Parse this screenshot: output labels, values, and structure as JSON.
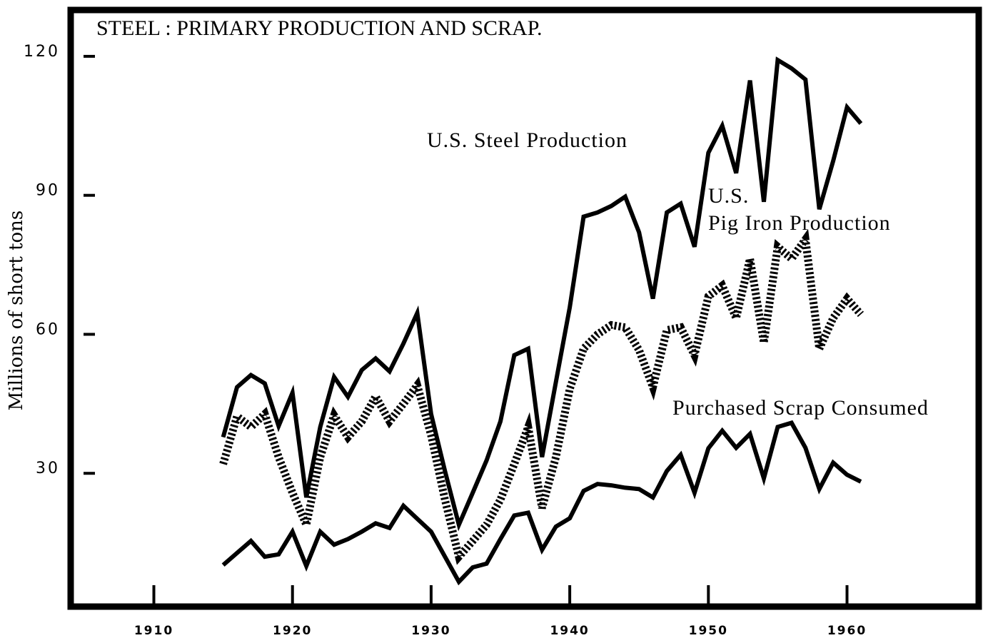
{
  "chart_data": {
    "type": "line",
    "title": "STEEL : PRIMARY PRODUCTION AND SCRAP.",
    "y_label": "Millions of short tons",
    "x": [
      1915,
      1916,
      1917,
      1918,
      1919,
      1920,
      1921,
      1922,
      1923,
      1924,
      1925,
      1926,
      1927,
      1928,
      1929,
      1930,
      1931,
      1932,
      1933,
      1934,
      1935,
      1936,
      1937,
      1938,
      1939,
      1940,
      1941,
      1942,
      1943,
      1944,
      1945,
      1946,
      1947,
      1948,
      1949,
      1950,
      1951,
      1952,
      1953,
      1954,
      1955,
      1956,
      1957,
      1958,
      1959,
      1960,
      1961
    ],
    "series": [
      {
        "name": "U.S. Steel Production",
        "color": "#000000",
        "style": "solid",
        "values": [
          37.8,
          48.6,
          51.2,
          49.4,
          40.2,
          47.4,
          24.8,
          40,
          50.8,
          46.5,
          52.3,
          54.8,
          52,
          58,
          64.6,
          42.8,
          30.5,
          18.9,
          25.8,
          32.8,
          41.2,
          55.5,
          56.9,
          33.5,
          49.7,
          65.8,
          85.4,
          86.3,
          87.7,
          89.7,
          82,
          67.7,
          86.3,
          88.2,
          78.9,
          99.2,
          105,
          94.8,
          114.8,
          88.6,
          119.2,
          117.4,
          115,
          87,
          97.4,
          109,
          105.5
        ]
      },
      {
        "name": "U.S.\nPig Iron Production",
        "color": "#000000",
        "style": "dashed",
        "values": [
          32,
          42.3,
          40,
          42.8,
          33.5,
          25.8,
          18.9,
          33.5,
          42.5,
          37.8,
          41.2,
          46.6,
          41.2,
          45,
          49,
          38.2,
          24.3,
          12,
          15.4,
          18.9,
          24.3,
          32,
          40,
          22.5,
          33.5,
          48.2,
          56.9,
          60,
          62,
          61.5,
          56.6,
          48.6,
          60.9,
          61.5,
          55.5,
          68.2,
          70.5,
          63.5,
          76.3,
          58.2,
          78.9,
          76.3,
          80.5,
          56.9,
          63.5,
          67.7,
          64.3
        ]
      },
      {
        "name": "Purchased Scrap Consumed",
        "color": "#000000",
        "style": "solid",
        "values": [
          10.2,
          12.8,
          15.4,
          12,
          12.5,
          17.4,
          10,
          17.4,
          14.6,
          15.8,
          17.4,
          19.2,
          18.2,
          23,
          20.2,
          17.4,
          12,
          6.6,
          9.7,
          10.5,
          15.8,
          20.9,
          21.5,
          13.5,
          18.5,
          20.3,
          26.2,
          27.7,
          27.4,
          26.9,
          26.6,
          24.8,
          30.5,
          34,
          25.8,
          35.4,
          39.2,
          35.5,
          38.5,
          28.9,
          40,
          40.9,
          35.5,
          26.6,
          32.3,
          29.7,
          28.2
        ]
      }
    ],
    "xlim": [
      1904,
      1969.5
    ],
    "xticks": [
      1910,
      1920,
      1930,
      1940,
      1950,
      1960
    ],
    "ylim": [
      0,
      130
    ],
    "yticks": [
      30,
      60,
      90,
      120
    ]
  }
}
